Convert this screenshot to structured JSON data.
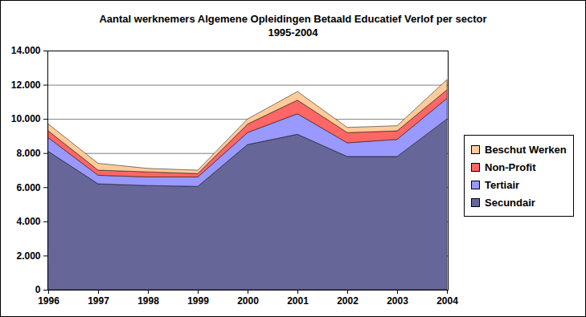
{
  "chart_data": {
    "type": "area",
    "title": "Aantal werknemers Algemene Opleidingen Betaald Educatief Verlof per sector",
    "subtitle": "1995-2004",
    "categories": [
      "1996",
      "1997",
      "1998",
      "1999",
      "2000",
      "2001",
      "2002",
      "2003",
      "2004"
    ],
    "series": [
      {
        "name": "Secundair",
        "color": "#666699",
        "values": [
          8100,
          6200,
          6100,
          6050,
          8500,
          9100,
          7800,
          7800,
          10000
        ]
      },
      {
        "name": "Tertiair",
        "color": "#9999ff",
        "values": [
          800,
          500,
          500,
          550,
          700,
          1200,
          800,
          1000,
          1200
        ]
      },
      {
        "name": "Non-Profit",
        "color": "#ff6666",
        "values": [
          400,
          300,
          300,
          200,
          500,
          800,
          600,
          500,
          500
        ]
      },
      {
        "name": "Beschut Werken",
        "color": "#ffcc99",
        "values": [
          400,
          400,
          200,
          200,
          300,
          500,
          300,
          300,
          600
        ]
      }
    ],
    "stacked": true,
    "ylim": [
      0,
      14000
    ],
    "yticks": [
      0,
      {
        "value": 2000,
        "label": "2.000"
      },
      {
        "value": 4000,
        "label": "4.000"
      },
      {
        "value": 6000,
        "label": "6.000"
      },
      {
        "value": 8000,
        "label": "8.000"
      },
      {
        "value": 10000,
        "label": "10.000"
      },
      {
        "value": 12000,
        "label": "12.000"
      },
      {
        "value": 14000,
        "label": "14.000"
      }
    ],
    "grid": true,
    "legend": "right"
  }
}
